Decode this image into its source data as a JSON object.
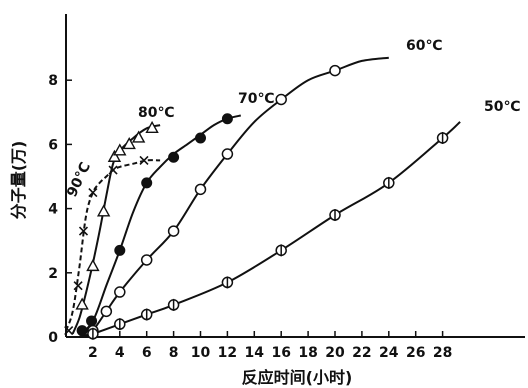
{
  "chart_data": {
    "type": "line",
    "title": "",
    "xlabel": "反应时间(小时)",
    "ylabel": "分子量(万)",
    "xlim": [
      0,
      30
    ],
    "ylim": [
      0,
      10
    ],
    "xticks": [
      "2",
      "4",
      "6",
      "8",
      "10",
      "12",
      "14",
      "16",
      "18",
      "20",
      "22",
      "24",
      "26",
      "28"
    ],
    "yticks": [
      "0",
      "2",
      "4",
      "6",
      "8"
    ],
    "grid": false,
    "series": [
      {
        "name": "90℃",
        "marker": "x",
        "dash": "5,3",
        "x": [
          0.2,
          0.9,
          1.3,
          2.0,
          3.5,
          5.8
        ],
        "y": [
          0.2,
          1.6,
          3.3,
          4.5,
          5.2,
          5.5
        ],
        "curve_x": [
          0,
          0.5,
          1,
          1.5,
          2,
          2.5,
          3,
          3.5,
          4,
          5,
          6,
          7
        ],
        "curve_y": [
          0.2,
          0.8,
          2.2,
          3.8,
          4.5,
          4.8,
          5.0,
          5.2,
          5.3,
          5.4,
          5.5,
          5.5
        ]
      },
      {
        "name": "80℃",
        "marker": "triangle",
        "dash": "",
        "x": [
          1.2,
          2.0,
          2.8,
          3.6,
          4.0,
          4.7,
          5.4,
          6.4
        ],
        "y": [
          1.0,
          2.2,
          3.9,
          5.6,
          5.8,
          6.0,
          6.2,
          6.5
        ],
        "curve_x": [
          0.5,
          1,
          1.5,
          2,
          2.5,
          3,
          3.5,
          4,
          5,
          6,
          7
        ],
        "curve_y": [
          0.1,
          0.6,
          1.4,
          2.3,
          3.3,
          4.4,
          5.4,
          5.8,
          6.2,
          6.5,
          6.6
        ]
      },
      {
        "name": "70℃",
        "marker": "filled-circle",
        "dash": "",
        "x": [
          1.2,
          1.9,
          4.0,
          6.0,
          8.0,
          10.0,
          12.0
        ],
        "y": [
          0.2,
          0.5,
          2.7,
          4.8,
          5.6,
          6.2,
          6.8
        ],
        "curve_x": [
          1,
          2,
          3,
          4,
          5,
          6,
          7,
          8,
          9,
          10,
          11,
          12,
          13
        ],
        "curve_y": [
          0.05,
          0.5,
          1.6,
          2.7,
          3.9,
          4.8,
          5.3,
          5.7,
          6.0,
          6.3,
          6.6,
          6.8,
          6.9
        ]
      },
      {
        "name": "60℃",
        "marker": "open-circle",
        "dash": "",
        "x": [
          2.0,
          3.0,
          4.0,
          6.0,
          8.0,
          10.0,
          12.0,
          16.0,
          20.0
        ],
        "y": [
          0.2,
          0.8,
          1.4,
          2.4,
          3.3,
          4.6,
          5.7,
          7.4,
          8.3
        ],
        "curve_x": [
          1.5,
          2,
          3,
          4,
          6,
          8,
          10,
          12,
          14,
          16,
          18,
          20,
          22,
          24
        ],
        "curve_y": [
          0.05,
          0.2,
          0.8,
          1.4,
          2.4,
          3.3,
          4.6,
          5.7,
          6.7,
          7.4,
          8.0,
          8.3,
          8.6,
          8.7
        ]
      },
      {
        "name": "50℃",
        "marker": "circle-bar",
        "dash": "",
        "x": [
          2.0,
          4.0,
          6.0,
          8.0,
          12.0,
          16.0,
          20.0,
          24.0,
          28.0
        ],
        "y": [
          0.1,
          0.4,
          0.7,
          1.0,
          1.7,
          2.7,
          3.8,
          4.8,
          6.2
        ],
        "curve_x": [
          1,
          2,
          4,
          6,
          8,
          12,
          16,
          20,
          24,
          28,
          29.3
        ],
        "curve_y": [
          0,
          0.1,
          0.4,
          0.7,
          1.0,
          1.7,
          2.7,
          3.8,
          4.8,
          6.2,
          6.7
        ]
      }
    ]
  }
}
